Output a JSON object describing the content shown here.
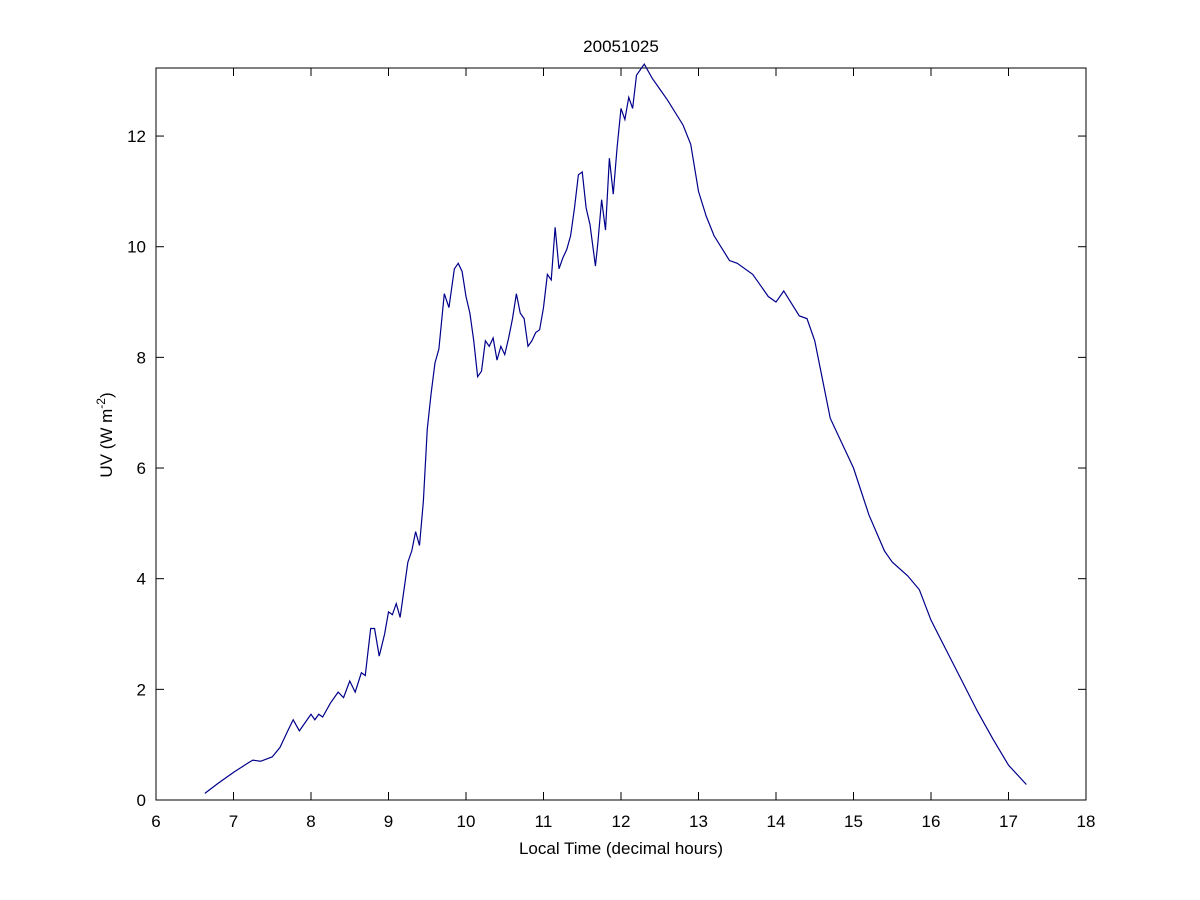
{
  "chart_data": {
    "type": "line",
    "title": "20051025",
    "xlabel": "Local Time (decimal hours)",
    "ylabel": [
      "UV (W m",
      "-2",
      ")"
    ],
    "color": "#00008b",
    "xlim": [
      6,
      18
    ],
    "xticks": [
      6,
      7,
      8,
      9,
      10,
      11,
      12,
      13,
      14,
      15,
      16,
      17,
      18
    ],
    "ylim": [
      0,
      13.23
    ],
    "yticks": [
      0,
      2,
      4,
      6,
      8,
      10,
      12
    ],
    "x": [
      6.63,
      6.8,
      7.0,
      7.2,
      7.25,
      7.35,
      7.5,
      7.6,
      7.7,
      7.77,
      7.85,
      7.95,
      8.0,
      8.05,
      8.1,
      8.15,
      8.25,
      8.35,
      8.42,
      8.5,
      8.57,
      8.65,
      8.7,
      8.77,
      8.82,
      8.88,
      8.95,
      9.0,
      9.05,
      9.1,
      9.15,
      9.2,
      9.25,
      9.3,
      9.35,
      9.4,
      9.45,
      9.5,
      9.55,
      9.6,
      9.65,
      9.72,
      9.78,
      9.85,
      9.9,
      9.95,
      10.0,
      10.05,
      10.1,
      10.15,
      10.2,
      10.25,
      10.3,
      10.35,
      10.4,
      10.45,
      10.5,
      10.55,
      10.6,
      10.65,
      10.7,
      10.75,
      10.8,
      10.85,
      10.9,
      10.95,
      11.0,
      11.05,
      11.1,
      11.15,
      11.2,
      11.25,
      11.3,
      11.35,
      11.4,
      11.45,
      11.5,
      11.55,
      11.6,
      11.67,
      11.7,
      11.75,
      11.8,
      11.85,
      11.9,
      11.95,
      12.0,
      12.05,
      12.1,
      12.15,
      12.2,
      12.3,
      12.4,
      12.5,
      12.6,
      12.8,
      12.9,
      13.0,
      13.1,
      13.2,
      13.4,
      13.5,
      13.7,
      13.9,
      14.0,
      14.1,
      14.3,
      14.4,
      14.5,
      14.6,
      14.7,
      14.8,
      15.0,
      15.2,
      15.4,
      15.5,
      15.7,
      15.85,
      16.0,
      16.2,
      16.4,
      16.6,
      16.8,
      17.0,
      17.23
    ],
    "y": [
      0.12,
      0.3,
      0.5,
      0.68,
      0.72,
      0.7,
      0.78,
      0.95,
      1.25,
      1.45,
      1.25,
      1.45,
      1.55,
      1.45,
      1.55,
      1.5,
      1.75,
      1.95,
      1.85,
      2.15,
      1.95,
      2.3,
      2.25,
      3.1,
      3.1,
      2.6,
      3.0,
      3.4,
      3.35,
      3.55,
      3.3,
      3.8,
      4.3,
      4.5,
      4.85,
      4.6,
      5.4,
      6.7,
      7.35,
      7.9,
      8.15,
      9.15,
      8.9,
      9.6,
      9.7,
      9.55,
      9.1,
      8.8,
      8.3,
      7.65,
      7.75,
      8.3,
      8.2,
      8.35,
      7.95,
      8.2,
      8.05,
      8.35,
      8.7,
      9.15,
      8.8,
      8.7,
      8.2,
      8.3,
      8.45,
      8.5,
      8.9,
      9.5,
      9.4,
      10.35,
      9.6,
      9.8,
      9.95,
      10.2,
      10.7,
      11.3,
      11.35,
      10.7,
      10.4,
      9.65,
      10.05,
      10.85,
      10.3,
      11.6,
      10.95,
      11.8,
      12.5,
      12.3,
      12.7,
      12.5,
      13.1,
      13.3,
      13.05,
      12.85,
      12.65,
      12.2,
      11.85,
      11.0,
      10.55,
      10.2,
      9.75,
      9.7,
      9.5,
      9.1,
      9.0,
      9.2,
      8.75,
      8.7,
      8.3,
      7.6,
      6.9,
      6.6,
      6.0,
      5.15,
      4.5,
      4.3,
      4.05,
      3.8,
      3.25,
      2.7,
      2.15,
      1.6,
      1.1,
      0.63,
      0.28
    ]
  }
}
